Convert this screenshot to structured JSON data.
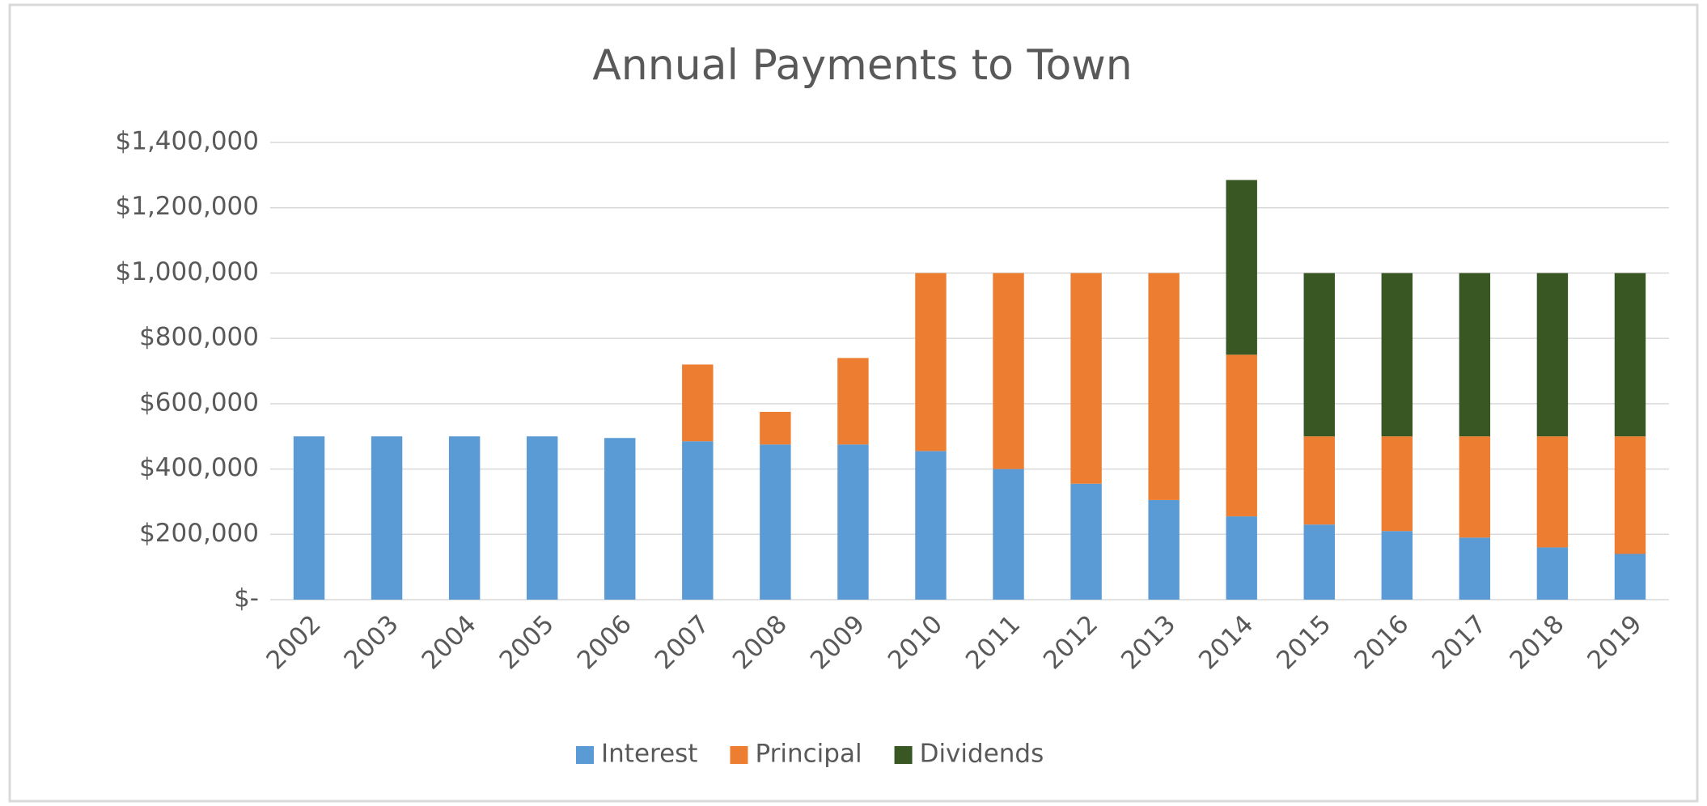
{
  "chart_data": {
    "type": "bar",
    "stacked": true,
    "title": "Annual Payments to Town",
    "categories": [
      "2002",
      "2003",
      "2004",
      "2005",
      "2006",
      "2007",
      "2008",
      "2009",
      "2010",
      "2011",
      "2012",
      "2013",
      "2014",
      "2015",
      "2016",
      "2017",
      "2018",
      "2019"
    ],
    "series": [
      {
        "name": "Interest",
        "color": "#5b9bd5",
        "values": [
          500000,
          500000,
          500000,
          500000,
          495000,
          485000,
          475000,
          475000,
          455000,
          400000,
          355000,
          305000,
          255000,
          230000,
          210000,
          190000,
          160000,
          140000
        ]
      },
      {
        "name": "Principal",
        "color": "#ed7d31",
        "values": [
          0,
          0,
          0,
          0,
          0,
          235000,
          100000,
          265000,
          545000,
          600000,
          645000,
          695000,
          495000,
          270000,
          290000,
          310000,
          340000,
          360000
        ]
      },
      {
        "name": "Dividends",
        "color": "#385723",
        "values": [
          0,
          0,
          0,
          0,
          0,
          0,
          0,
          0,
          0,
          0,
          0,
          0,
          535000,
          500000,
          500000,
          500000,
          500000,
          500000
        ]
      }
    ],
    "ylim": [
      0,
      1400000
    ],
    "yticks": [
      {
        "value": 0,
        "label": "$-"
      },
      {
        "value": 200000,
        "label": "$200,000"
      },
      {
        "value": 400000,
        "label": "$400,000"
      },
      {
        "value": 600000,
        "label": "$600,000"
      },
      {
        "value": 800000,
        "label": "$800,000"
      },
      {
        "value": 1000000,
        "label": "$1,000,000"
      },
      {
        "value": 1200000,
        "label": "$1,200,000"
      },
      {
        "value": 1400000,
        "label": "$1,400,000"
      }
    ],
    "grid": true,
    "legend": "bottom"
  }
}
